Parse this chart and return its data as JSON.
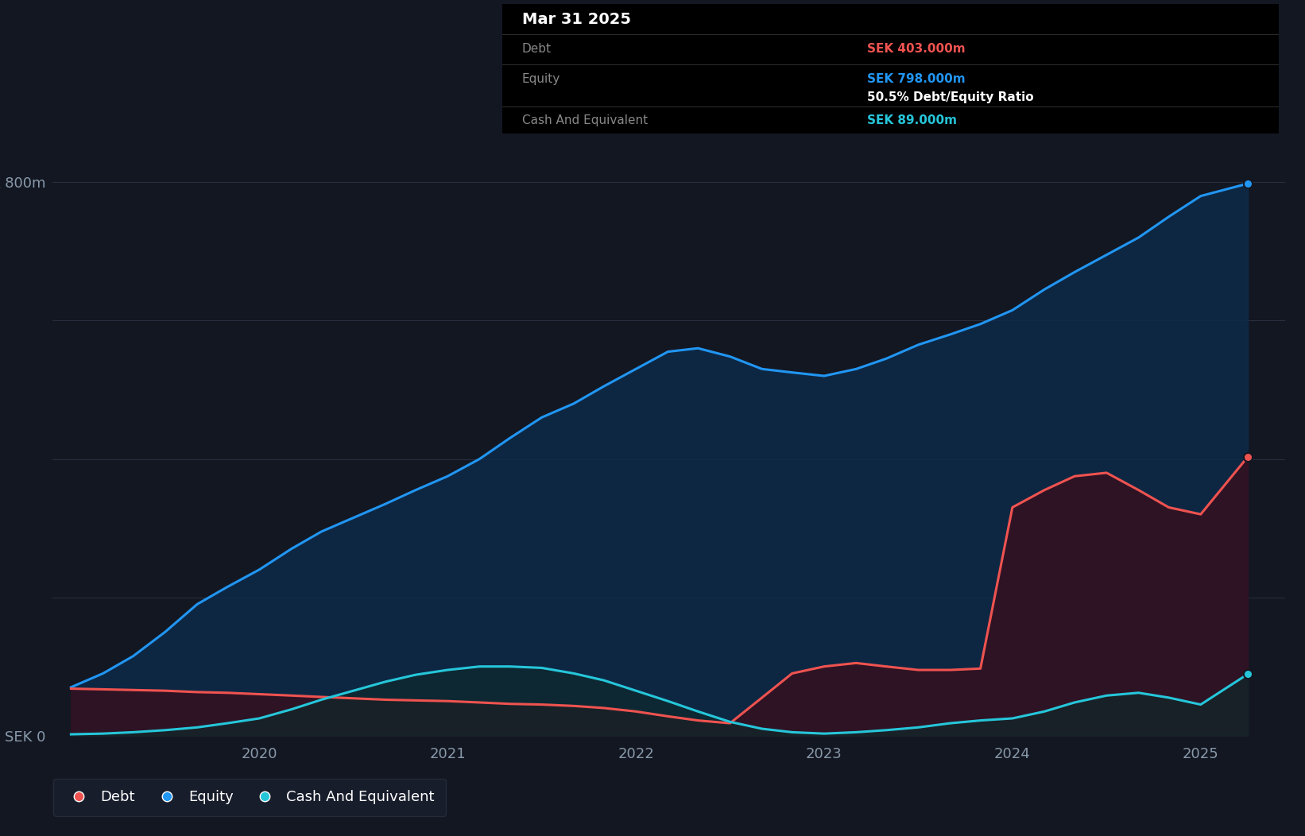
{
  "background_color": "#131722",
  "plot_bg_color": "#131722",
  "grid_color": "#2a3040",
  "equity_color": "#2196f3",
  "debt_color": "#ef5350",
  "cash_color": "#26c6da",
  "equity_fill": "#0d2a4a",
  "debt_fill": "#3a0d1a",
  "cash_fill": "#0d2a2a",
  "ylim_min": 0,
  "ylim_max": 870,
  "ylabel_800": "SEK 800m",
  "ylabel_0": "SEK 0",
  "xlabel_ticks": [
    "2020",
    "2021",
    "2022",
    "2023",
    "2024",
    "2025"
  ],
  "xtick_positions": [
    2020,
    2021,
    2022,
    2023,
    2024,
    2025
  ],
  "tooltip_title": "Mar 31 2025",
  "tooltip_debt_label": "Debt",
  "tooltip_debt_value": "SEK 403.000m",
  "tooltip_equity_label": "Equity",
  "tooltip_equity_value": "SEK 798.000m",
  "tooltip_ratio": "50.5% Debt/Equity Ratio",
  "tooltip_cash_label": "Cash And Equivalent",
  "tooltip_cash_value": "SEK 89.000m",
  "dates": [
    2019.0,
    2019.17,
    2019.33,
    2019.5,
    2019.67,
    2019.83,
    2020.0,
    2020.17,
    2020.33,
    2020.5,
    2020.67,
    2020.83,
    2021.0,
    2021.17,
    2021.33,
    2021.5,
    2021.67,
    2021.83,
    2022.0,
    2022.17,
    2022.33,
    2022.5,
    2022.67,
    2022.83,
    2023.0,
    2023.17,
    2023.33,
    2023.5,
    2023.67,
    2023.83,
    2024.0,
    2024.17,
    2024.33,
    2024.5,
    2024.67,
    2024.83,
    2025.0,
    2025.25
  ],
  "equity": [
    70,
    90,
    115,
    150,
    190,
    215,
    240,
    270,
    295,
    315,
    335,
    355,
    375,
    400,
    430,
    460,
    480,
    505,
    530,
    555,
    560,
    548,
    530,
    525,
    520,
    530,
    545,
    565,
    580,
    595,
    615,
    645,
    670,
    695,
    720,
    750,
    780,
    798
  ],
  "debt": [
    68,
    67,
    66,
    65,
    63,
    62,
    60,
    58,
    56,
    54,
    52,
    51,
    50,
    48,
    46,
    45,
    43,
    40,
    35,
    28,
    22,
    18,
    55,
    90,
    100,
    105,
    100,
    95,
    95,
    97,
    330,
    355,
    375,
    380,
    355,
    330,
    320,
    403
  ],
  "cash": [
    2,
    3,
    5,
    8,
    12,
    18,
    25,
    38,
    52,
    65,
    78,
    88,
    95,
    100,
    100,
    98,
    90,
    80,
    65,
    50,
    35,
    20,
    10,
    5,
    3,
    5,
    8,
    12,
    18,
    22,
    25,
    35,
    48,
    58,
    62,
    55,
    45,
    89
  ]
}
